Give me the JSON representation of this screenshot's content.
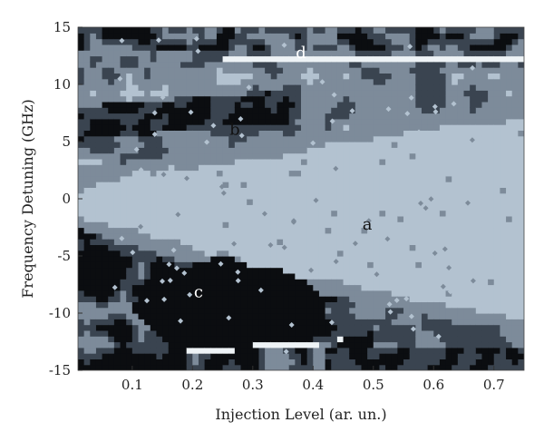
{
  "chart_data": {
    "type": "heatmap",
    "title": "",
    "xlabel": "Injection Level (ar. un.)",
    "ylabel": "Frequency Detuning (GHz)",
    "xlim": [
      0.01,
      0.75
    ],
    "ylim": [
      -15,
      15
    ],
    "x_ticks": [
      0.1,
      0.2,
      0.3,
      0.4,
      0.5,
      0.6,
      0.7
    ],
    "x_tick_labels": [
      "0.1",
      "0.2",
      "0.3",
      "0.4",
      "0.5",
      "0.6",
      "0.7"
    ],
    "y_ticks": [
      -15,
      -10,
      -5,
      0,
      5,
      10,
      15
    ],
    "y_tick_labels": [
      "-15",
      "-10",
      "-5",
      "0",
      "5",
      "10",
      "15"
    ],
    "grid": false,
    "colors": {
      "level_0": "#0b0d10",
      "level_1": "#3a4450",
      "level_2": "#7d8b9a",
      "level_3": "#b3c2d0",
      "level_4": "#eef3f6"
    },
    "regions": [
      {
        "label": "a",
        "x": 0.49,
        "y": -2.7
      },
      {
        "label": "b",
        "x": 0.27,
        "y": 5.6
      },
      {
        "label": "c",
        "x": 0.21,
        "y": -8.6
      },
      {
        "label": "d",
        "x": 0.38,
        "y": 12.3
      }
    ]
  }
}
